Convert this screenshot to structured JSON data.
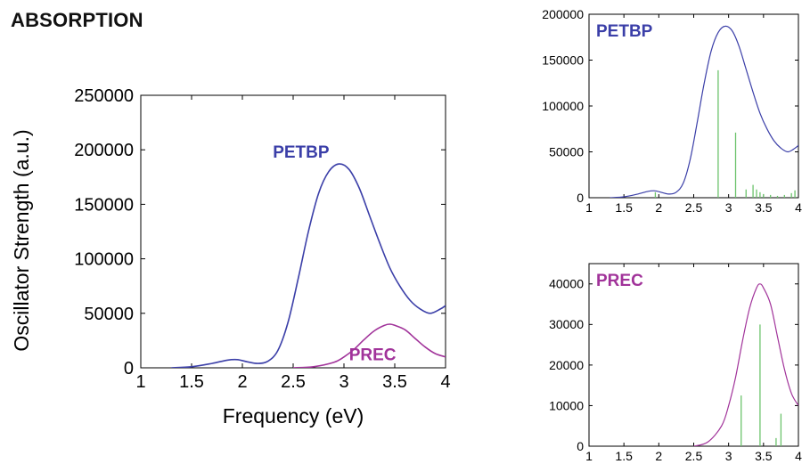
{
  "heading": "ABSORPTION",
  "colors": {
    "petbp": "#3b3fa8",
    "prec": "#a1339a",
    "sticks": "#6cc36c",
    "axis": "#000000"
  },
  "chart_data": [
    {
      "id": "main",
      "type": "line",
      "title": "",
      "xlabel": "Frequency (eV)",
      "ylabel": "Oscillator Strength (a.u.)",
      "xlim": [
        1,
        4
      ],
      "ylim": [
        0,
        250000
      ],
      "xticks": [
        "1",
        "1.5",
        "2",
        "2.5",
        "3",
        "3.5",
        "4"
      ],
      "yticks": [
        "0",
        "50000",
        "100000",
        "150000",
        "200000",
        "250000"
      ],
      "grid": false,
      "series": [
        {
          "name": "PETBP",
          "color": "#3b3fa8",
          "x": [
            1.3,
            1.5,
            1.7,
            1.85,
            1.95,
            2.05,
            2.15,
            2.25,
            2.35,
            2.45,
            2.55,
            2.65,
            2.75,
            2.85,
            2.95,
            3.05,
            3.15,
            3.25,
            3.35,
            3.45,
            3.55,
            3.65,
            3.75,
            3.85,
            3.95,
            4.0
          ],
          "y": [
            0,
            1000,
            4000,
            7000,
            7500,
            5500,
            4000,
            6000,
            16000,
            42000,
            82000,
            125000,
            160000,
            180000,
            187000,
            182000,
            165000,
            140000,
            115000,
            92000,
            75000,
            62000,
            54000,
            50000,
            54000,
            57000
          ]
        },
        {
          "name": "PREC",
          "color": "#a1339a",
          "x": [
            2.5,
            2.7,
            2.9,
            3.0,
            3.1,
            3.2,
            3.3,
            3.4,
            3.45,
            3.5,
            3.6,
            3.7,
            3.8,
            3.9,
            4.0
          ],
          "y": [
            0,
            1000,
            5000,
            10000,
            17000,
            26000,
            34000,
            39000,
            40000,
            39000,
            35000,
            27000,
            19000,
            13000,
            10000
          ]
        }
      ],
      "annotations": [
        {
          "text": "PETBP",
          "x": 2.3,
          "y": 193000,
          "color": "#3b3fa8"
        },
        {
          "text": "PREC",
          "x": 3.05,
          "y": 7000,
          "color": "#a1339a"
        }
      ]
    },
    {
      "id": "top-right",
      "type": "line",
      "title": "PETBP",
      "xlim": [
        1,
        4
      ],
      "ylim": [
        0,
        200000
      ],
      "xticks": [
        "1",
        "1.5",
        "2",
        "2.5",
        "3",
        "3.5",
        "4"
      ],
      "yticks": [
        "0",
        "50000",
        "100000",
        "150000",
        "200000"
      ],
      "grid": false,
      "series": [
        {
          "name": "PETBP",
          "color": "#3b3fa8",
          "x": [
            1.3,
            1.5,
            1.7,
            1.85,
            1.95,
            2.05,
            2.15,
            2.25,
            2.35,
            2.45,
            2.55,
            2.65,
            2.75,
            2.85,
            2.95,
            3.05,
            3.15,
            3.25,
            3.35,
            3.45,
            3.55,
            3.65,
            3.75,
            3.85,
            3.95,
            4.0
          ],
          "y": [
            0,
            1000,
            4000,
            7000,
            7500,
            5500,
            4000,
            6000,
            16000,
            42000,
            82000,
            125000,
            160000,
            180000,
            187000,
            182000,
            165000,
            140000,
            115000,
            92000,
            75000,
            62000,
            54000,
            50000,
            54000,
            57000
          ]
        }
      ],
      "sticks": {
        "color": "#6cc36c",
        "x": [
          1.95,
          2.85,
          3.1,
          3.25,
          3.35,
          3.4,
          3.45,
          3.5,
          3.6,
          3.7,
          3.8,
          3.9,
          3.95
        ],
        "y": [
          6000,
          139000,
          71000,
          9000,
          14000,
          9000,
          6000,
          4000,
          3000,
          2000,
          3000,
          5000,
          8000
        ]
      }
    },
    {
      "id": "bottom-right",
      "type": "line",
      "title": "PREC",
      "xlim": [
        1,
        4
      ],
      "ylim": [
        0,
        45000
      ],
      "xticks": [
        "1",
        "1.5",
        "2",
        "2.5",
        "3",
        "3.5",
        "4"
      ],
      "yticks": [
        "0",
        "10000",
        "20000",
        "30000",
        "40000"
      ],
      "grid": false,
      "series": [
        {
          "name": "PREC",
          "color": "#a1339a",
          "x": [
            2.5,
            2.7,
            2.9,
            3.0,
            3.1,
            3.2,
            3.3,
            3.4,
            3.45,
            3.5,
            3.6,
            3.7,
            3.8,
            3.9,
            4.0
          ],
          "y": [
            0,
            1000,
            5000,
            10000,
            17000,
            26000,
            34000,
            39000,
            40000,
            39000,
            35000,
            27000,
            19000,
            13000,
            10000
          ]
        }
      ],
      "sticks": {
        "color": "#6cc36c",
        "x": [
          3.18,
          3.45,
          3.68,
          3.75
        ],
        "y": [
          12500,
          30000,
          2000,
          8000
        ]
      }
    }
  ]
}
